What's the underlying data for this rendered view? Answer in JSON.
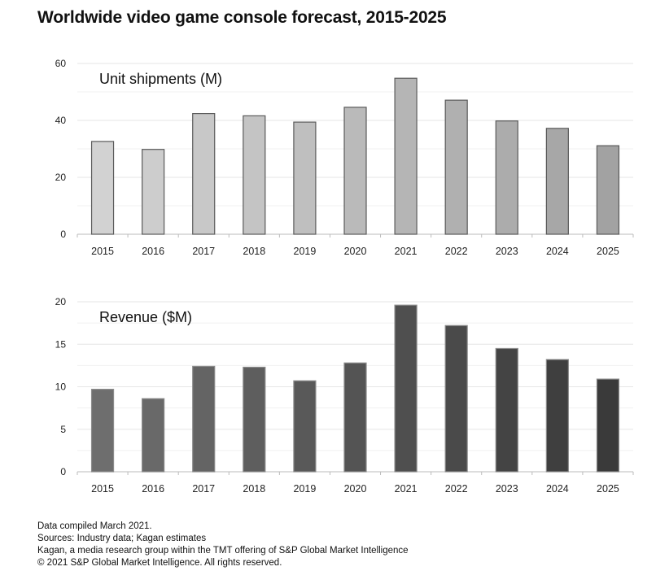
{
  "title": "Worldwide video game console forecast, 2015-2025",
  "chart_data": [
    {
      "type": "bar",
      "title": "Unit shipments (M)",
      "categories": [
        "2015",
        "2016",
        "2017",
        "2018",
        "2019",
        "2020",
        "2021",
        "2022",
        "2023",
        "2024",
        "2025"
      ],
      "values": [
        32.6,
        29.8,
        42.4,
        41.6,
        39.4,
        44.6,
        54.8,
        47.1,
        39.8,
        37.2,
        31.1
      ],
      "ylim": [
        0,
        60
      ],
      "yticks": [
        "0",
        "20",
        "40",
        "60"
      ],
      "ytick_values": [
        0,
        20,
        40,
        60
      ],
      "grid": true,
      "colors": {
        "start": "#d2d2d2",
        "end": "#a2a2a2",
        "outline": "#5a5a5a"
      }
    },
    {
      "type": "bar",
      "title": "Revenue ($M)",
      "categories": [
        "2015",
        "2016",
        "2017",
        "2018",
        "2019",
        "2020",
        "2021",
        "2022",
        "2023",
        "2024",
        "2025"
      ],
      "values": [
        9.7,
        8.6,
        12.4,
        12.3,
        10.7,
        12.8,
        19.6,
        17.2,
        14.5,
        13.2,
        10.9
      ],
      "ylim": [
        0,
        20
      ],
      "yticks": [
        "0",
        "5",
        "10",
        "15",
        "20"
      ],
      "ytick_values": [
        0,
        5,
        10,
        15,
        20
      ],
      "grid": true,
      "colors": {
        "start": "#6e6e6e",
        "end": "#3a3a3a",
        "outline": "#8a8a8a"
      }
    }
  ],
  "notes": [
    "Data compiled March 2021.",
    "Sources: Industry data; Kagan estimates",
    "Kagan, a media research group within the TMT offering of S&P Global Market Intelligence",
    "© 2021 S&P Global Market Intelligence. All rights reserved."
  ]
}
